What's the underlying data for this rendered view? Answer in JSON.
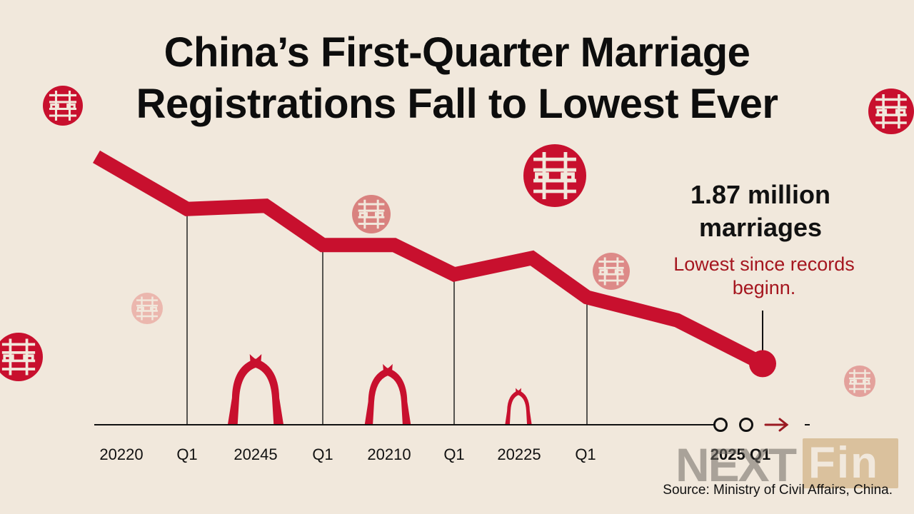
{
  "title_lines": [
    "China’s First-Quarter Marriage",
    "Registrations Fall to Lowest Ever"
  ],
  "callout": {
    "value": "1.87 million marriages",
    "value_lines": [
      "1.87 million",
      "marriages"
    ],
    "note_lines": [
      "Lowest since records",
      "beginn."
    ]
  },
  "source": "Source: Ministry of Civil Affairs, China.",
  "watermark": {
    "left": "NEXT",
    "right": "Fin"
  },
  "colors": {
    "line": "#c8102e",
    "background": "#f1e8dc",
    "note": "#a5161f",
    "decor": "#c8102e"
  },
  "icons": [
    "double-happiness-icon",
    "wedding-arch-icon",
    "arrow-right-icon"
  ],
  "chart_data": {
    "type": "line",
    "title": "China’s First-Quarter Marriage Registrations Fall to Lowest Ever",
    "tick_labels": [
      "20220",
      "Q1",
      "20245",
      "Q1",
      "20210",
      "Q1",
      "20225",
      "Q1"
    ],
    "end_label": "2025 Q1",
    "series": [
      {
        "values": [
          8.2,
          6.6,
          6.7,
          5.5,
          5.5,
          4.6,
          5.1,
          3.9,
          3.2,
          1.87
        ]
      }
    ],
    "ylim": [
      0,
      9.5
    ],
    "grid": false,
    "annotation": {
      "index": 9,
      "text": "1.87 million marriages"
    }
  }
}
